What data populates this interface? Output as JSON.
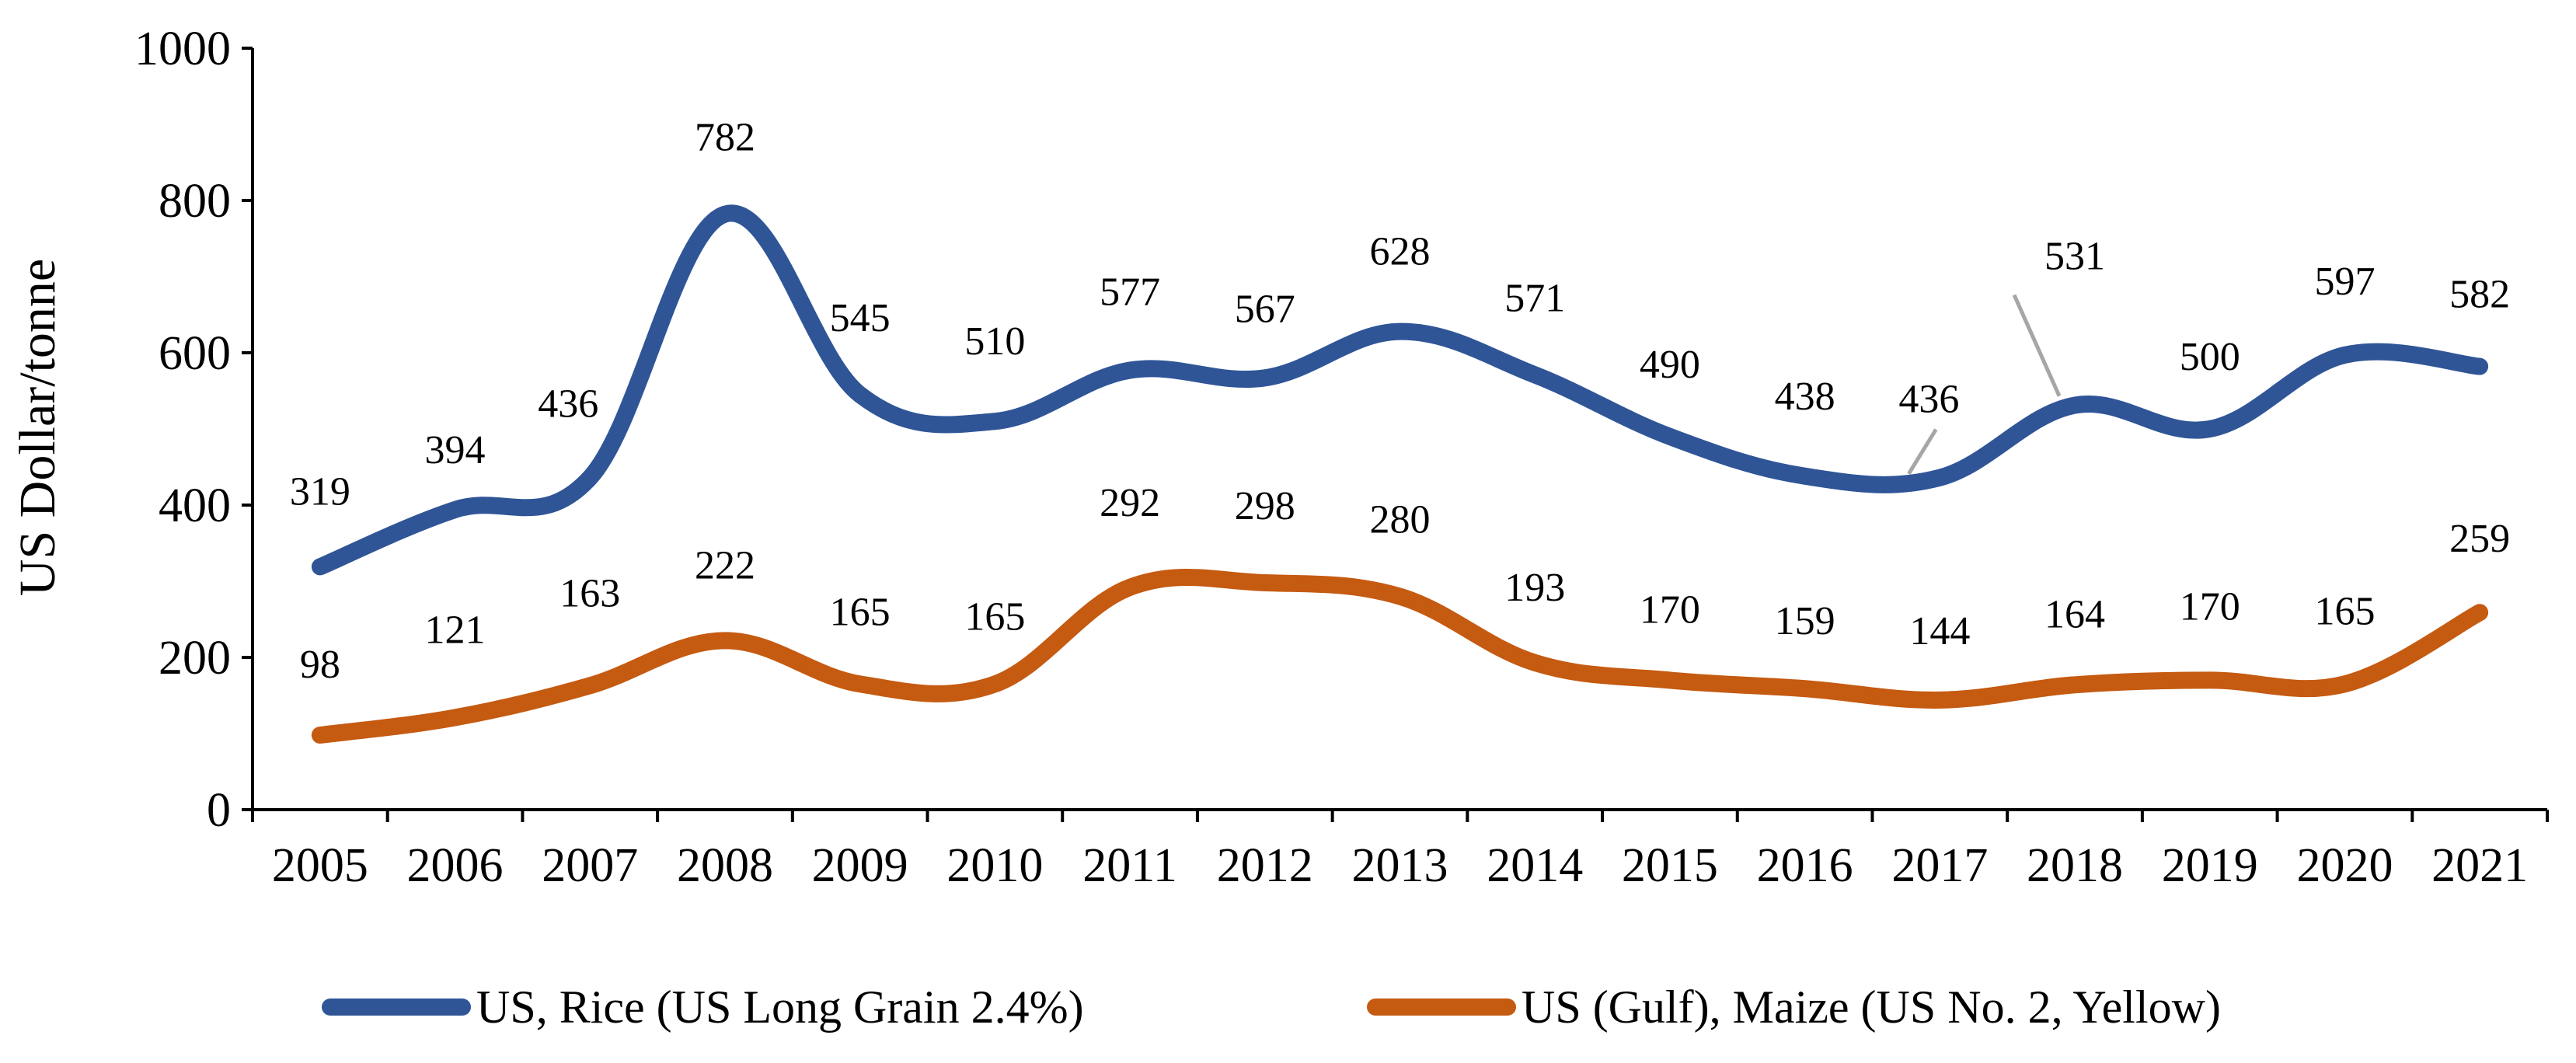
{
  "chart_data": {
    "type": "line",
    "title": "",
    "xlabel": "",
    "ylabel": "US Dollar/tonne",
    "ylim": [
      0,
      1000
    ],
    "yticks": [
      0,
      200,
      400,
      600,
      800,
      1000
    ],
    "grid": false,
    "legend_position": "bottom",
    "categories": [
      "2005",
      "2006",
      "2007",
      "2008",
      "2009",
      "2010",
      "2011",
      "2012",
      "2013",
      "2014",
      "2015",
      "2016",
      "2017",
      "2018",
      "2019",
      "2020",
      "2021"
    ],
    "series": [
      {
        "name": "US, Rice (US Long Grain 2.4%)",
        "color": "#2f5597",
        "values": [
          319,
          394,
          436,
          782,
          545,
          510,
          577,
          567,
          628,
          571,
          490,
          438,
          436,
          531,
          500,
          597,
          582
        ]
      },
      {
        "name": "US (Gulf), Maize (US No. 2, Yellow)",
        "color": "#c55a11",
        "values": [
          98,
          121,
          163,
          222,
          165,
          165,
          292,
          298,
          280,
          193,
          170,
          159,
          144,
          164,
          170,
          165,
          259
        ]
      }
    ]
  }
}
